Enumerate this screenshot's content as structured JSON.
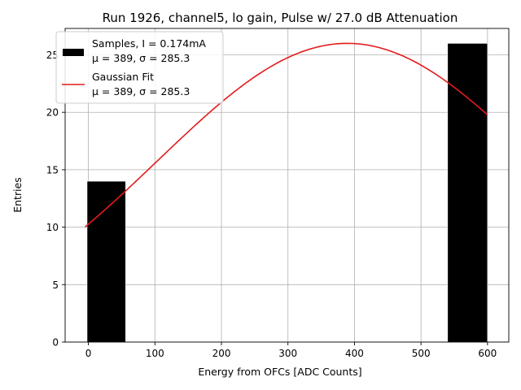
{
  "chart_data": {
    "type": "bar",
    "title": "Run 1926, channel5, lo gain, Pulse w/ 27.0 dB Attenuation",
    "xlabel": "Energy from OFCs [ADC Counts]",
    "ylabel": "Entries",
    "xlim": [
      -35,
      632
    ],
    "ylim": [
      0,
      27.3
    ],
    "grid": true,
    "legend_position": "top-left",
    "x_ticks": [
      0,
      100,
      200,
      300,
      400,
      500,
      600
    ],
    "y_ticks": [
      0,
      5,
      10,
      15,
      20,
      25
    ],
    "histogram": {
      "name": "Samples, I = 0.174mA",
      "stats": "μ = 389, σ = 285.3",
      "color": "#000000",
      "bins": [
        {
          "x0": -2,
          "x1": 56,
          "count": 14
        },
        {
          "x0": 540,
          "x1": 600,
          "count": 26
        }
      ]
    },
    "fit": {
      "name": "Gaussian Fit",
      "stats": "μ = 389, σ = 285.3",
      "color": "#e41a1c",
      "mu": 389,
      "sigma": 285.3,
      "amplitude": 26,
      "x_range": [
        -5,
        600
      ]
    }
  }
}
